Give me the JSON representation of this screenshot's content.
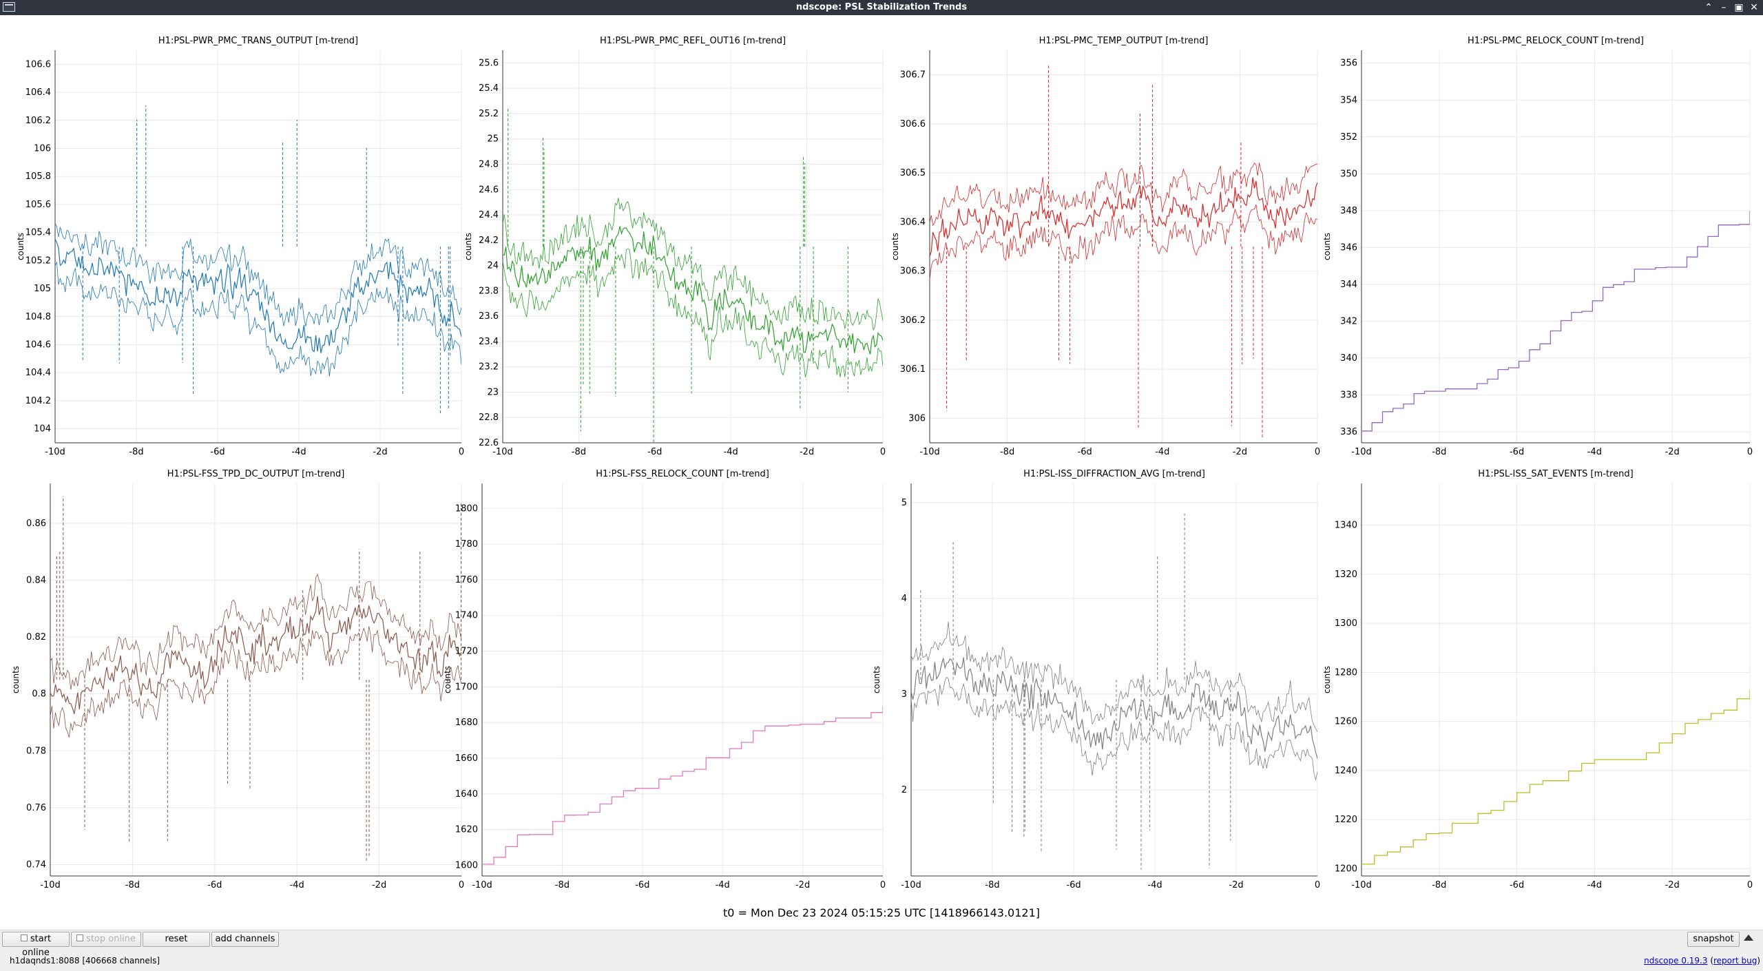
{
  "window": {
    "title": "ndscope: PSL Stabilization Trends"
  },
  "plots": [
    {
      "title": "H1:PSL-PWR_PMC_TRANS_OUTPUT [m-trend]",
      "ylabel": "counts",
      "color": "#1f77b4",
      "kind": "noise",
      "yticks": [
        "106.6",
        "106.4",
        "106.2",
        "106",
        "105.8",
        "105.6",
        "105.4",
        "105.2",
        "105",
        "104.8",
        "104.6",
        "104.4",
        "104.2",
        "104"
      ],
      "xticks": [
        "-10d",
        "-8d",
        "-6d",
        "-4d",
        "-2d",
        "0"
      ],
      "ylim": [
        103.9,
        106.7
      ]
    },
    {
      "title": "H1:PSL-PWR_PMC_REFL_OUT16 [m-trend]",
      "ylabel": "counts",
      "color": "#2ca02c",
      "kind": "noise",
      "yticks": [
        "25.6",
        "25.4",
        "25.2",
        "25",
        "24.8",
        "24.6",
        "24.4",
        "24.2",
        "24",
        "23.8",
        "23.6",
        "23.4",
        "23.2",
        "23",
        "22.8",
        "22.6"
      ],
      "xticks": [
        "-10d",
        "-8d",
        "-6d",
        "-4d",
        "-2d",
        "0"
      ],
      "ylim": [
        22.6,
        25.7
      ]
    },
    {
      "title": "H1:PSL-PMC_TEMP_OUTPUT [m-trend]",
      "ylabel": "counts",
      "color": "#d62728",
      "kind": "noise",
      "yticks": [
        "306.7",
        "306.6",
        "306.5",
        "306.4",
        "306.3",
        "306.2",
        "306.1",
        "306"
      ],
      "xticks": [
        "-10d",
        "-8d",
        "-6d",
        "-4d",
        "-2d",
        "0"
      ],
      "ylim": [
        305.95,
        306.75
      ]
    },
    {
      "title": "H1:PSL-PMC_RELOCK_COUNT [m-trend]",
      "ylabel": "counts",
      "color": "#9467bd",
      "kind": "step",
      "yticks": [
        "356",
        "354",
        "352",
        "350",
        "348",
        "346",
        "344",
        "342",
        "340",
        "338",
        "336"
      ],
      "xticks": [
        "-10d",
        "-8d",
        "-6d",
        "-4d",
        "-2d",
        "0"
      ],
      "ylim": [
        335.4,
        356.7
      ]
    },
    {
      "title": "H1:PSL-FSS_TPD_DC_OUTPUT [m-trend]",
      "ylabel": "counts",
      "color": "#8c564b",
      "kind": "noise",
      "yticks": [
        "0.86",
        "0.84",
        "0.82",
        "0.8",
        "0.78",
        "0.76",
        "0.74"
      ],
      "xticks": [
        "-10d",
        "-8d",
        "-6d",
        "-4d",
        "-2d",
        "0"
      ],
      "ylim": [
        0.736,
        0.874
      ]
    },
    {
      "title": "H1:PSL-FSS_RELOCK_COUNT [m-trend]",
      "ylabel": "counts",
      "color": "#e377c2",
      "kind": "step",
      "yticks": [
        "1800",
        "1780",
        "1760",
        "1740",
        "1720",
        "1700",
        "1680",
        "1660",
        "1640",
        "1620",
        "1600"
      ],
      "xticks": [
        "-10d",
        "-8d",
        "-6d",
        "-4d",
        "-2d",
        "0"
      ],
      "ylim": [
        1594,
        1814
      ]
    },
    {
      "title": "H1:PSL-ISS_DIFFRACTION_AVG [m-trend]",
      "ylabel": "counts",
      "color": "#7f7f7f",
      "kind": "noise",
      "yticks": [
        "5",
        "4",
        "3",
        "2"
      ],
      "xticks": [
        "-10d",
        "-8d",
        "-6d",
        "-4d",
        "-2d",
        "0"
      ],
      "ylim": [
        1.1,
        5.2
      ]
    },
    {
      "title": "H1:PSL-ISS_SAT_EVENTS [m-trend]",
      "ylabel": "counts",
      "color": "#bcbd22",
      "kind": "step",
      "yticks": [
        "1340",
        "1320",
        "1300",
        "1280",
        "1260",
        "1240",
        "1220",
        "1200"
      ],
      "xticks": [
        "-10d",
        "-8d",
        "-6d",
        "-4d",
        "-2d",
        "0"
      ],
      "ylim": [
        1197,
        1357
      ]
    }
  ],
  "t0_label": "t0 = Mon Dec 23 2024 05:15:25 UTC [1418966143.0121]",
  "buttons": {
    "start_online": "start online",
    "stop_online": "stop online",
    "reset": "reset",
    "add_channels": "add channels",
    "snapshot": "snapshot"
  },
  "status": {
    "server": "h1daqnds1:8088  [406668 channels]",
    "app_link": "ndscope 0.19.3",
    "report_link": "report bug"
  }
}
